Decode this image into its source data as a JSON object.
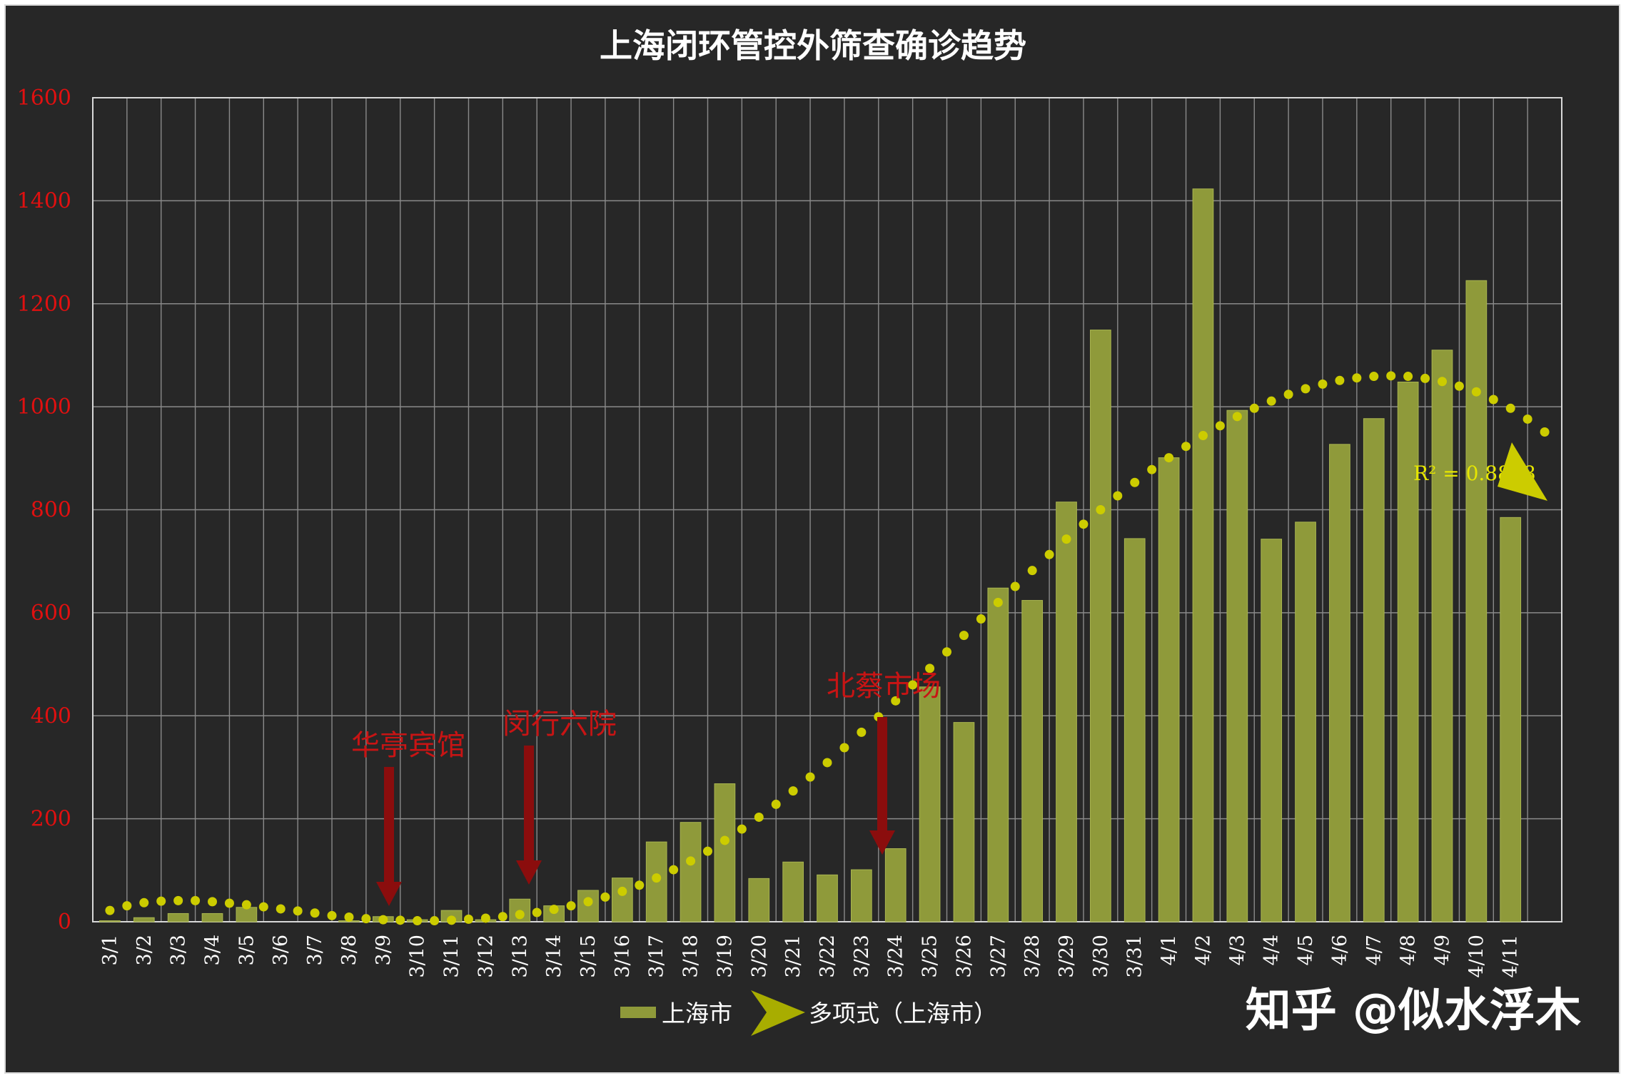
{
  "chart_data": {
    "type": "bar",
    "title": "上海闭环管控外筛查确诊趋势",
    "categories": [
      "3/1",
      "3/2",
      "3/3",
      "3/4",
      "3/5",
      "3/6",
      "3/7",
      "3/8",
      "3/9",
      "3/10",
      "3/11",
      "3/12",
      "3/13",
      "3/14",
      "3/15",
      "3/16",
      "3/17",
      "3/18",
      "3/19",
      "3/20",
      "3/21",
      "3/22",
      "3/23",
      "3/24",
      "3/25",
      "3/26",
      "3/27",
      "3/28",
      "3/29",
      "3/30",
      "3/31",
      "4/1",
      "4/2",
      "4/3",
      "4/4",
      "4/5",
      "4/6",
      "4/7",
      "4/8",
      "4/9",
      "4/10",
      "4/11"
    ],
    "series": [
      {
        "name": "上海市",
        "values": [
          2,
          8,
          16,
          16,
          28,
          0,
          0,
          2,
          10,
          4,
          22,
          4,
          44,
          31,
          61,
          85,
          155,
          193,
          268,
          84,
          116,
          91,
          101,
          142,
          456,
          387,
          648,
          624,
          815,
          1149,
          744,
          901,
          1423,
          993,
          743,
          776,
          927,
          977,
          1048,
          1110,
          1245,
          785
        ]
      }
    ],
    "trendline": {
      "name": "多项式（上海市）",
      "type": "polynomial",
      "r2_label": "R² = 0.8898",
      "points": [
        [
          1,
          22
        ],
        [
          1.5,
          31
        ],
        [
          2,
          37
        ],
        [
          2.5,
          40
        ],
        [
          3,
          41
        ],
        [
          3.5,
          41
        ],
        [
          4,
          39
        ],
        [
          4.5,
          36
        ],
        [
          5,
          33
        ],
        [
          5.5,
          29
        ],
        [
          6,
          25
        ],
        [
          6.5,
          21
        ],
        [
          7,
          17
        ],
        [
          7.5,
          12
        ],
        [
          8,
          9
        ],
        [
          8.5,
          6
        ],
        [
          9,
          4
        ],
        [
          9.5,
          3
        ],
        [
          10,
          2
        ],
        [
          10.5,
          2
        ],
        [
          11,
          3
        ],
        [
          11.5,
          5
        ],
        [
          12,
          7
        ],
        [
          12.5,
          10
        ],
        [
          13,
          14
        ],
        [
          13.5,
          18
        ],
        [
          14,
          24
        ],
        [
          14.5,
          31
        ],
        [
          15,
          39
        ],
        [
          15.5,
          48
        ],
        [
          16,
          59
        ],
        [
          16.5,
          71
        ],
        [
          17,
          85
        ],
        [
          17.5,
          101
        ],
        [
          18,
          118
        ],
        [
          18.5,
          137
        ],
        [
          19,
          158
        ],
        [
          19.5,
          180
        ],
        [
          20,
          203
        ],
        [
          20.5,
          228
        ],
        [
          21,
          254
        ],
        [
          21.5,
          281
        ],
        [
          22,
          309
        ],
        [
          22.5,
          338
        ],
        [
          23,
          368
        ],
        [
          23.5,
          398
        ],
        [
          24,
          429
        ],
        [
          24.5,
          460
        ],
        [
          25,
          492
        ],
        [
          25.5,
          524
        ],
        [
          26,
          556
        ],
        [
          26.5,
          588
        ],
        [
          27,
          620
        ],
        [
          27.5,
          651
        ],
        [
          28,
          682
        ],
        [
          28.5,
          713
        ],
        [
          29,
          743
        ],
        [
          29.5,
          772
        ],
        [
          30,
          800
        ],
        [
          30.5,
          827
        ],
        [
          31,
          853
        ],
        [
          31.5,
          878
        ],
        [
          32,
          901
        ],
        [
          32.5,
          923
        ],
        [
          33,
          944
        ],
        [
          33.5,
          963
        ],
        [
          34,
          981
        ],
        [
          34.5,
          997
        ],
        [
          35,
          1011
        ],
        [
          35.5,
          1024
        ],
        [
          36,
          1035
        ],
        [
          36.5,
          1044
        ],
        [
          37,
          1051
        ],
        [
          37.5,
          1056
        ],
        [
          38,
          1059
        ],
        [
          38.5,
          1060
        ],
        [
          39,
          1059
        ],
        [
          39.5,
          1055
        ],
        [
          40,
          1049
        ],
        [
          40.5,
          1040
        ],
        [
          41,
          1029
        ],
        [
          41.5,
          1014
        ],
        [
          42,
          997
        ],
        [
          42.5,
          976
        ],
        [
          43,
          951
        ]
      ]
    },
    "ylim": [
      0,
      1600
    ],
    "yticks": [
      0,
      200,
      400,
      600,
      800,
      1000,
      1200,
      1400,
      1600
    ],
    "grid": true,
    "legend_position": "bottom",
    "annotations": [
      {
        "text": "华亭宾馆",
        "category": "3/9"
      },
      {
        "text": "闵行六院",
        "category": "3/13"
      },
      {
        "text": "北蔡市场",
        "category": "3/24"
      }
    ],
    "colors": {
      "bar": "#8f9a3a",
      "bar_edge": "#a9b550",
      "trend": "#cccc00",
      "grid": "#8a8a8a",
      "axis_text": "#e01010",
      "annotation": "#c81414",
      "arrow": "#8b0d0d"
    }
  },
  "legend": {
    "bar_label": "上海市",
    "trend_label": "多项式（上海市）"
  },
  "watermark": "知乎 @似水浮木"
}
